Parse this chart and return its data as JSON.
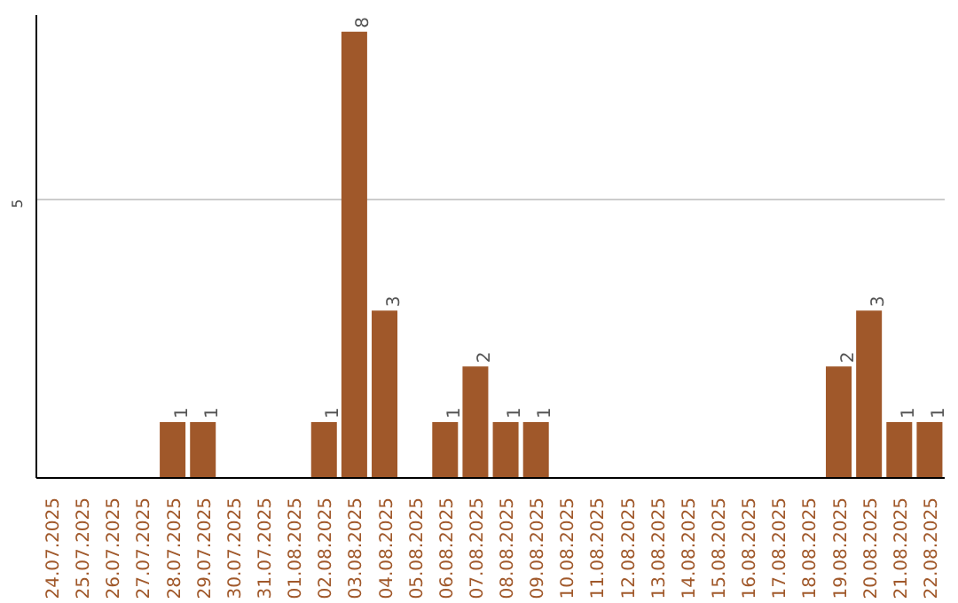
{
  "chart_data": {
    "type": "bar",
    "categories": [
      "24.07.2025",
      "25.07.2025",
      "26.07.2025",
      "27.07.2025",
      "28.07.2025",
      "29.07.2025",
      "30.07.2025",
      "31.07.2025",
      "01.08.2025",
      "02.08.2025",
      "03.08.2025",
      "04.08.2025",
      "05.08.2025",
      "06.08.2025",
      "07.08.2025",
      "08.08.2025",
      "09.08.2025",
      "10.08.2025",
      "11.08.2025",
      "12.08.2025",
      "13.08.2025",
      "14.08.2025",
      "15.08.2025",
      "16.08.2025",
      "17.08.2025",
      "18.08.2025",
      "19.08.2025",
      "20.08.2025",
      "21.08.2025",
      "22.08.2025"
    ],
    "values": [
      0,
      0,
      0,
      0,
      1,
      1,
      0,
      0,
      0,
      1,
      8,
      3,
      0,
      1,
      2,
      1,
      1,
      0,
      0,
      0,
      0,
      0,
      0,
      0,
      0,
      0,
      2,
      3,
      1,
      1
    ],
    "value_labels": [
      null,
      null,
      null,
      null,
      "1",
      "1",
      null,
      null,
      null,
      "1",
      "8",
      "3",
      null,
      "1",
      "2",
      "1",
      "1",
      null,
      null,
      null,
      null,
      null,
      null,
      null,
      null,
      null,
      "2",
      "3",
      "1",
      "1"
    ],
    "color": "#a0582a",
    "ylim": [
      0,
      8.3
    ],
    "yticks": [
      5
    ],
    "grid": "y"
  }
}
